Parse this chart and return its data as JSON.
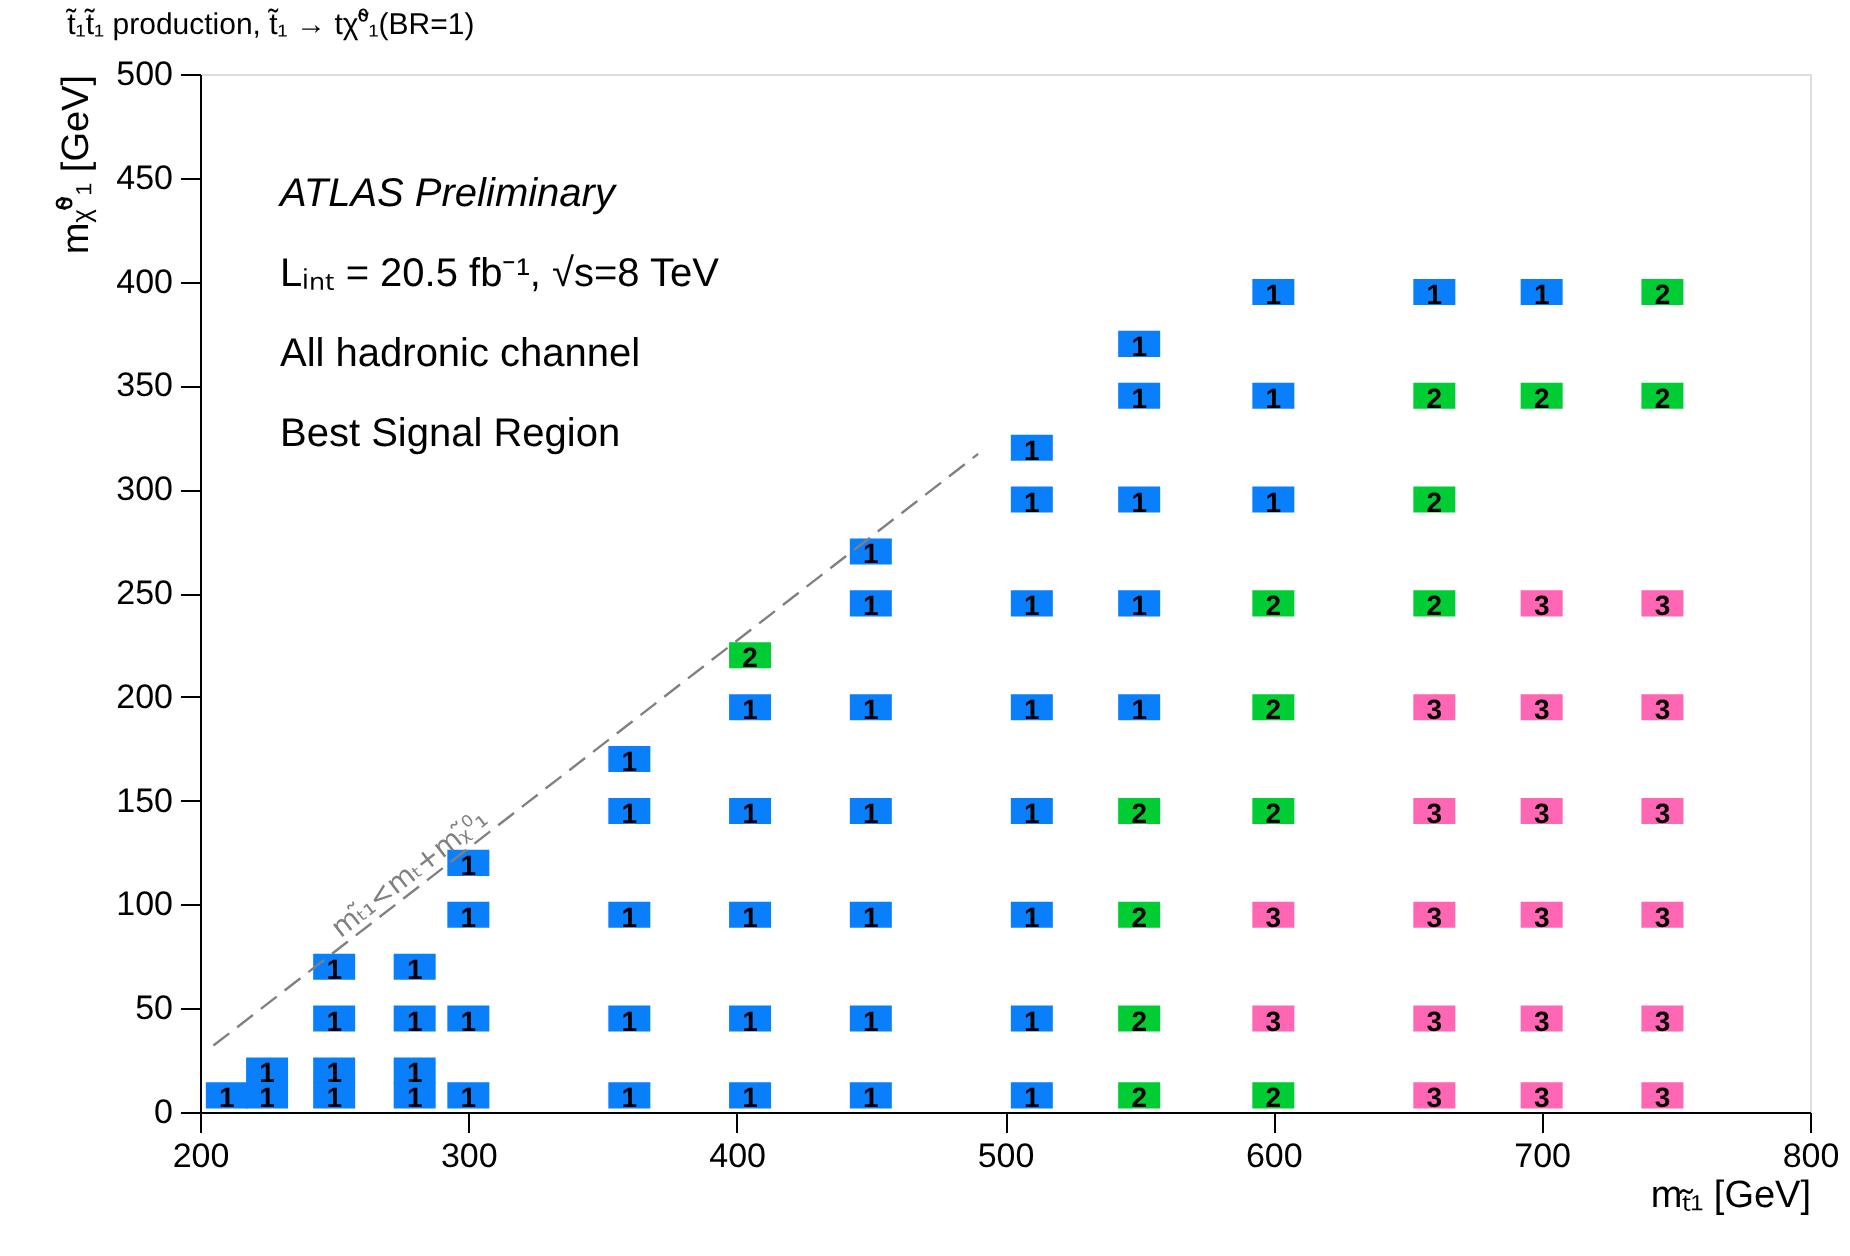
{
  "chart_data": {
    "type": "scatter",
    "title": "t̃₁t̃₁ production, t̃₁ → tχ̃⁰₁(BR=1)",
    "xlabel": "mₜ̃₁ [GeV]",
    "ylabel": "mᵪ̃⁰₁ [GeV]",
    "xlim": [
      200,
      800
    ],
    "xticks": [
      200,
      300,
      400,
      500,
      600,
      700,
      800
    ],
    "ylim": [
      0,
      500
    ],
    "yticks": [
      0,
      50,
      100,
      150,
      200,
      250,
      300,
      350,
      400,
      450,
      500
    ],
    "grid": false,
    "series": [
      {
        "name": "1",
        "color": "#0a7ffb",
        "marker": "square",
        "x": [
          210,
          225,
          225,
          250,
          250,
          250,
          250,
          280,
          280,
          280,
          280,
          300,
          300,
          300,
          300,
          360,
          360,
          360,
          360,
          360,
          405,
          405,
          405,
          405,
          405,
          450,
          450,
          450,
          450,
          450,
          450,
          450,
          510,
          510,
          510,
          510,
          510,
          510,
          510,
          510,
          550,
          550,
          550,
          550,
          550,
          600,
          600,
          600,
          660,
          700
        ],
        "values": [
          8,
          8,
          20,
          8,
          20,
          45,
          70,
          8,
          20,
          45,
          70,
          8,
          45,
          95,
          120,
          8,
          45,
          95,
          145,
          170,
          8,
          45,
          95,
          145,
          195,
          8,
          45,
          95,
          145,
          195,
          245,
          270,
          8,
          45,
          95,
          145,
          195,
          245,
          295,
          320,
          195,
          245,
          295,
          345,
          370,
          295,
          345,
          395,
          395,
          395
        ]
      },
      {
        "name": "2",
        "color": "#00cc33",
        "marker": "square",
        "x": [
          405,
          550,
          550,
          550,
          550,
          600,
          600,
          600,
          600,
          660,
          660,
          660,
          700,
          745,
          745
        ],
        "values": [
          220,
          8,
          45,
          95,
          145,
          8,
          145,
          195,
          245,
          245,
          295,
          345,
          345,
          345,
          395
        ]
      },
      {
        "name": "3",
        "color": "#ff66b3",
        "marker": "square",
        "x": [
          600,
          600,
          660,
          660,
          660,
          660,
          660,
          700,
          700,
          700,
          700,
          700,
          700,
          745,
          745,
          745,
          745,
          745,
          745
        ],
        "values": [
          45,
          95,
          8,
          45,
          95,
          145,
          195,
          8,
          45,
          95,
          145,
          195,
          245,
          8,
          45,
          95,
          145,
          195,
          245
        ]
      },
      {
        "type": "line",
        "color": "#808080",
        "line_style": "dashed",
        "marker": "none",
        "x": [
          205,
          490
        ],
        "values": [
          32,
          317
        ]
      }
    ],
    "annotations": [
      "ATLAS  Preliminary",
      "Lᵢₙₜ = 20.5 fb⁻¹, √s=8 TeV",
      "All hadronic channel",
      "Best Signal Region",
      "mₜ̃₁<mₜ+mᵪ̃⁰₁"
    ]
  }
}
